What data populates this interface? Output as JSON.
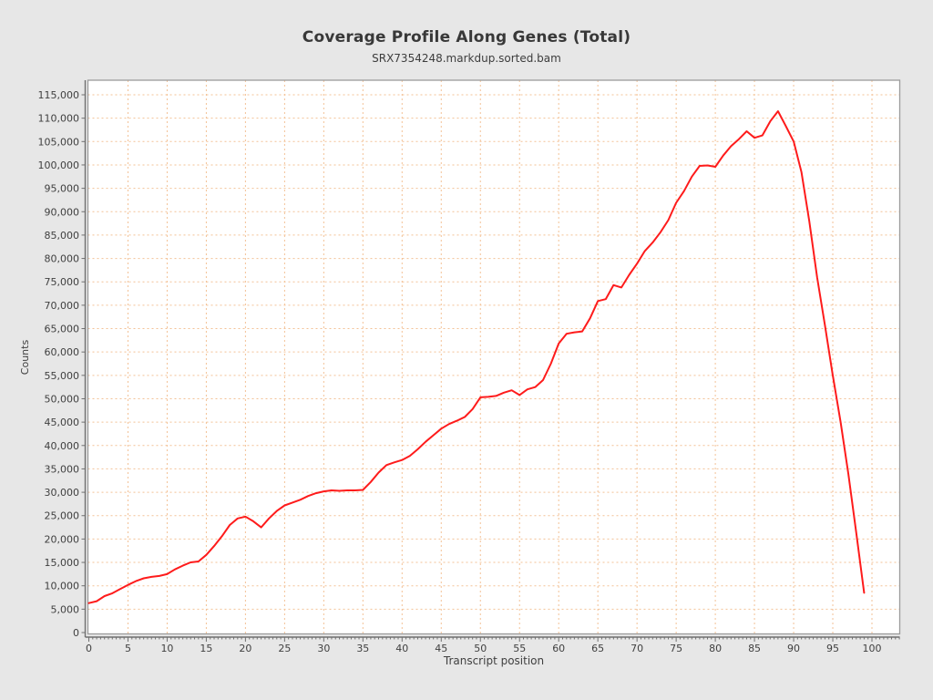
{
  "chart": {
    "title": "Coverage Profile Along Genes (Total)",
    "subtitle": "SRX7354248.markdup.sorted.bam"
  },
  "colors": {
    "page_background": "#e7e7e7",
    "plot_background": "#ffffff",
    "gridline": "#f3c195",
    "frame": "#9b9b9b",
    "axis_line": "#6f6f6f",
    "tick_text": "#3f3f3f",
    "series_line": "#fe1b1b"
  },
  "chart_data": {
    "type": "line",
    "title": "Coverage Profile Along Genes (Total)",
    "subtitle": "SRX7354248.markdup.sorted.bam",
    "xlabel": "Transcript position",
    "ylabel": "Counts",
    "xlim": [
      0,
      103.5
    ],
    "ylim": [
      0,
      115000
    ],
    "xtick_step": 5,
    "xtick_minor_step": 0.5,
    "xtick_label_max": 100,
    "ytick_step": 5000,
    "ytick_label_format": "thousands-comma",
    "grid": true,
    "grid_style": "dashed",
    "legend": "none",
    "series": [
      {
        "name": "SRX7354248.markdup.sorted.bam",
        "color": "#fe1b1b",
        "x_start": 0,
        "x_step": 1,
        "values": [
          6300,
          6700,
          7800,
          8400,
          9300,
          10200,
          11000,
          11600,
          11900,
          12100,
          12500,
          13500,
          14300,
          15000,
          15200,
          16600,
          18500,
          20600,
          23000,
          24400,
          24800,
          23800,
          22500,
          24400,
          26000,
          27200,
          27800,
          28400,
          29200,
          29800,
          30200,
          30400,
          30300,
          30400,
          30400,
          30500,
          32200,
          34200,
          35800,
          36400,
          36900,
          37800,
          39200,
          40800,
          42200,
          43600,
          44600,
          45300,
          46100,
          47800,
          50300,
          50400,
          50600,
          51300,
          51800,
          50800,
          52000,
          52500,
          54000,
          57500,
          61800,
          63900,
          64200,
          64400,
          67200,
          70900,
          71300,
          74300,
          73800,
          76500,
          78900,
          81600,
          83400,
          85600,
          88200,
          91900,
          94400,
          97500,
          99800,
          99900,
          99600,
          102000,
          104000,
          105500,
          107200,
          105800,
          106300,
          109300,
          111500,
          108300,
          105000,
          98500,
          88000,
          76000,
          65700,
          55000,
          45000,
          33800,
          21300,
          8500
        ]
      }
    ]
  }
}
